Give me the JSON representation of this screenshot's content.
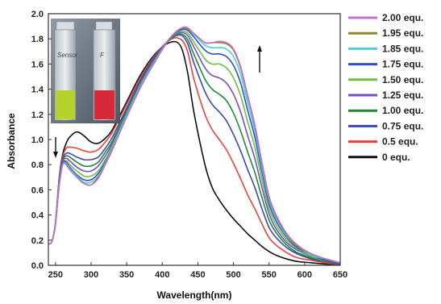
{
  "chart_data": {
    "type": "line",
    "xlabel": "Wavelength(nm)",
    "ylabel": "Absorbance",
    "xlim": [
      240,
      650
    ],
    "ylim": [
      0,
      2.0
    ],
    "x_ticks": [
      "250",
      "300",
      "350",
      "400",
      "450",
      "500",
      "550",
      "600",
      "650"
    ],
    "y_ticks": [
      "0.0",
      "0.2",
      "0.4",
      "0.6",
      "0.8",
      "1.0",
      "1.2",
      "1.4",
      "1.6",
      "1.8",
      "2.0"
    ],
    "grid": false,
    "legend_position": "right",
    "annotations": {
      "arrow_down_at_x": 250,
      "arrow_up_at_x": 535,
      "inset_labels": [
        "Sensor",
        "F"
      ]
    },
    "x": [
      240,
      245,
      250,
      255,
      260,
      265,
      270,
      280,
      290,
      300,
      310,
      320,
      330,
      350,
      370,
      390,
      410,
      425,
      435,
      445,
      460,
      470,
      480,
      490,
      500,
      510,
      520,
      530,
      540,
      550,
      560,
      575,
      590,
      610,
      630,
      650
    ],
    "series": [
      {
        "name": "2.00 equ.",
        "color": "#c06fd2",
        "values": [
          0.17,
          0.19,
          0.33,
          0.62,
          0.8,
          0.8,
          0.76,
          0.7,
          0.65,
          0.64,
          0.69,
          0.8,
          0.92,
          1.18,
          1.42,
          1.62,
          1.8,
          1.88,
          1.89,
          1.84,
          1.77,
          1.77,
          1.78,
          1.77,
          1.72,
          1.58,
          1.35,
          1.12,
          0.82,
          0.55,
          0.4,
          0.25,
          0.16,
          0.09,
          0.05,
          0.02
        ]
      },
      {
        "name": "1.95 equ.",
        "color": "#8c8a2e",
        "values": [
          0.17,
          0.19,
          0.33,
          0.62,
          0.8,
          0.8,
          0.76,
          0.7,
          0.65,
          0.64,
          0.7,
          0.8,
          0.92,
          1.18,
          1.42,
          1.62,
          1.8,
          1.88,
          1.88,
          1.84,
          1.77,
          1.77,
          1.77,
          1.76,
          1.71,
          1.57,
          1.34,
          1.11,
          0.81,
          0.54,
          0.39,
          0.24,
          0.15,
          0.09,
          0.05,
          0.02
        ]
      },
      {
        "name": "1.85 equ.",
        "color": "#4fcdd8",
        "values": [
          0.17,
          0.19,
          0.33,
          0.63,
          0.8,
          0.81,
          0.77,
          0.71,
          0.66,
          0.66,
          0.71,
          0.81,
          0.93,
          1.19,
          1.43,
          1.63,
          1.8,
          1.88,
          1.88,
          1.83,
          1.75,
          1.73,
          1.73,
          1.72,
          1.66,
          1.52,
          1.29,
          1.07,
          0.78,
          0.52,
          0.37,
          0.23,
          0.15,
          0.08,
          0.05,
          0.02
        ]
      },
      {
        "name": "1.75 equ.",
        "color": "#2f52c8",
        "values": [
          0.17,
          0.19,
          0.33,
          0.63,
          0.81,
          0.82,
          0.78,
          0.72,
          0.68,
          0.68,
          0.73,
          0.82,
          0.93,
          1.19,
          1.43,
          1.63,
          1.8,
          1.87,
          1.87,
          1.81,
          1.71,
          1.68,
          1.68,
          1.66,
          1.59,
          1.45,
          1.23,
          1.02,
          0.74,
          0.49,
          0.35,
          0.22,
          0.14,
          0.08,
          0.04,
          0.02
        ]
      },
      {
        "name": "1.50 equ.",
        "color": "#6cc13f",
        "values": [
          0.17,
          0.19,
          0.33,
          0.64,
          0.81,
          0.83,
          0.8,
          0.75,
          0.71,
          0.71,
          0.75,
          0.84,
          0.95,
          1.2,
          1.44,
          1.63,
          1.8,
          1.86,
          1.85,
          1.77,
          1.64,
          1.6,
          1.6,
          1.57,
          1.49,
          1.35,
          1.14,
          0.94,
          0.68,
          0.45,
          0.32,
          0.2,
          0.13,
          0.07,
          0.04,
          0.02
        ]
      },
      {
        "name": "1.25 equ.",
        "color": "#7a4fc2",
        "values": [
          0.17,
          0.19,
          0.33,
          0.64,
          0.82,
          0.85,
          0.83,
          0.78,
          0.75,
          0.75,
          0.79,
          0.87,
          0.97,
          1.21,
          1.45,
          1.64,
          1.8,
          1.85,
          1.83,
          1.73,
          1.57,
          1.51,
          1.49,
          1.45,
          1.36,
          1.22,
          1.03,
          0.85,
          0.62,
          0.41,
          0.29,
          0.18,
          0.12,
          0.07,
          0.04,
          0.02
        ]
      },
      {
        "name": "1.00 equ.",
        "color": "#1e8a3a",
        "values": [
          0.17,
          0.19,
          0.33,
          0.65,
          0.83,
          0.87,
          0.86,
          0.82,
          0.79,
          0.79,
          0.82,
          0.9,
          0.99,
          1.23,
          1.46,
          1.65,
          1.79,
          1.84,
          1.8,
          1.67,
          1.48,
          1.4,
          1.36,
          1.31,
          1.21,
          1.07,
          0.9,
          0.74,
          0.54,
          0.36,
          0.26,
          0.16,
          0.1,
          0.06,
          0.03,
          0.02
        ]
      },
      {
        "name": "0.75 equ.",
        "color": "#3a48b5",
        "values": [
          0.17,
          0.19,
          0.33,
          0.66,
          0.84,
          0.89,
          0.89,
          0.86,
          0.84,
          0.84,
          0.86,
          0.93,
          1.02,
          1.25,
          1.48,
          1.66,
          1.79,
          1.83,
          1.77,
          1.6,
          1.38,
          1.28,
          1.22,
          1.15,
          1.04,
          0.91,
          0.76,
          0.62,
          0.45,
          0.3,
          0.22,
          0.14,
          0.09,
          0.05,
          0.03,
          0.01
        ]
      },
      {
        "name": "0.5 equ.",
        "color": "#e8413a",
        "values": [
          0.17,
          0.19,
          0.34,
          0.67,
          0.86,
          0.93,
          0.94,
          0.93,
          0.91,
          0.9,
          0.92,
          0.98,
          1.06,
          1.28,
          1.5,
          1.67,
          1.79,
          1.8,
          1.71,
          1.47,
          1.2,
          1.08,
          1.0,
          0.92,
          0.81,
          0.69,
          0.56,
          0.45,
          0.33,
          0.22,
          0.16,
          0.1,
          0.06,
          0.04,
          0.02,
          0.01
        ]
      },
      {
        "name": "0 equ.",
        "color": "#111111",
        "values": [
          0.17,
          0.19,
          0.34,
          0.68,
          0.88,
          0.97,
          1.02,
          1.06,
          1.03,
          0.98,
          0.97,
          1.01,
          1.08,
          1.3,
          1.52,
          1.68,
          1.77,
          1.75,
          1.55,
          1.2,
          0.8,
          0.62,
          0.52,
          0.44,
          0.37,
          0.31,
          0.25,
          0.2,
          0.15,
          0.11,
          0.08,
          0.05,
          0.03,
          0.02,
          0.01,
          0.01
        ]
      }
    ]
  }
}
